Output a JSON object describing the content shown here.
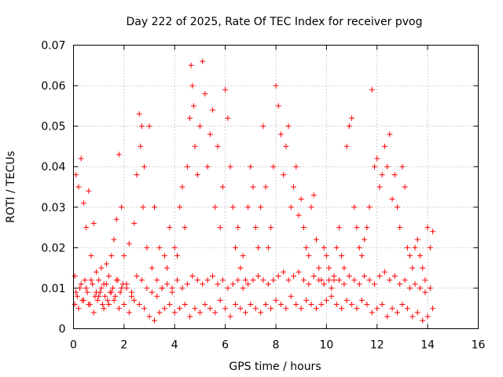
{
  "chart_data": {
    "type": "scatter",
    "title": "Day 222 of 2025, Rate Of TEC Index for receiver pvog",
    "xlabel": "GPS time / hours",
    "ylabel": "ROTI / TECUs",
    "xlim": [
      0,
      16
    ],
    "ylim": [
      0,
      0.07
    ],
    "x_ticks": [
      "0",
      "2",
      "4",
      "6",
      "8",
      "10",
      "12",
      "14",
      "16"
    ],
    "y_ticks": [
      "0",
      "0.01",
      "0.02",
      "0.03",
      "0.04",
      "0.05",
      "0.06",
      "0.07"
    ],
    "grid": true,
    "legend": "none",
    "marker": "plus",
    "color": "#ff0000",
    "series": [
      {
        "x": [
          0.05,
          0.1,
          0.15,
          0.2,
          0.25,
          0.3,
          0.35,
          0.4,
          0.45,
          0.5,
          0.55,
          0.6,
          0.65,
          0.7,
          0.75,
          0.8,
          0.85,
          0.9,
          0.95,
          1.0,
          1.05,
          1.1,
          1.15,
          1.2,
          1.25,
          1.3,
          1.35,
          1.4,
          1.45,
          1.5,
          1.55,
          1.6,
          1.65,
          1.7,
          1.75,
          1.8,
          1.85,
          1.9,
          1.95,
          2.0,
          2.1,
          2.2,
          2.3,
          2.4,
          2.5,
          2.6,
          2.65,
          2.7,
          2.75,
          2.8,
          2.9,
          3.0,
          3.1,
          3.2,
          3.3,
          3.4,
          3.5,
          3.6,
          3.7,
          3.8,
          3.9,
          4.0,
          4.1,
          4.2,
          4.3,
          4.4,
          4.5,
          4.6,
          4.65,
          4.7,
          4.75,
          4.8,
          4.9,
          5.0,
          5.1,
          5.2,
          5.3,
          5.4,
          5.5,
          5.6,
          5.7,
          5.8,
          5.9,
          6.0,
          6.1,
          6.2,
          6.3,
          6.4,
          6.5,
          6.6,
          6.7,
          6.8,
          6.9,
          7.0,
          7.1,
          7.2,
          7.3,
          7.4,
          7.5,
          7.6,
          7.7,
          7.8,
          7.9,
          8.0,
          8.1,
          8.2,
          8.3,
          8.4,
          8.5,
          8.6,
          8.7,
          8.8,
          8.9,
          9.0,
          9.1,
          9.2,
          9.3,
          9.4,
          9.5,
          9.6,
          9.7,
          9.8,
          9.9,
          10.0,
          10.1,
          10.2,
          10.3,
          10.4,
          10.5,
          10.6,
          10.7,
          10.8,
          10.9,
          11.0,
          11.1,
          11.2,
          11.3,
          11.4,
          11.5,
          11.6,
          11.7,
          11.8,
          11.9,
          12.0,
          12.1,
          12.2,
          12.3,
          12.4,
          12.5,
          12.6,
          12.7,
          12.8,
          12.9,
          13.0,
          13.1,
          13.2,
          13.3,
          13.4,
          13.5,
          13.6,
          13.7,
          13.8,
          13.9,
          14.0,
          14.1,
          14.2
        ],
        "y": [
          0.013,
          0.038,
          0.008,
          0.035,
          0.01,
          0.042,
          0.007,
          0.031,
          0.012,
          0.025,
          0.009,
          0.034,
          0.006,
          0.018,
          0.011,
          0.026,
          0.008,
          0.014,
          0.007,
          0.012,
          0.009,
          0.015,
          0.006,
          0.011,
          0.008,
          0.016,
          0.007,
          0.013,
          0.009,
          0.018,
          0.01,
          0.022,
          0.008,
          0.027,
          0.012,
          0.043,
          0.009,
          0.03,
          0.011,
          0.018,
          0.01,
          0.021,
          0.008,
          0.026,
          0.038,
          0.053,
          0.045,
          0.05,
          0.03,
          0.04,
          0.02,
          0.05,
          0.015,
          0.03,
          0.012,
          0.02,
          0.01,
          0.018,
          0.015,
          0.025,
          0.01,
          0.02,
          0.018,
          0.03,
          0.035,
          0.025,
          0.04,
          0.052,
          0.065,
          0.06,
          0.055,
          0.045,
          0.038,
          0.05,
          0.066,
          0.058,
          0.04,
          0.048,
          0.054,
          0.03,
          0.045,
          0.025,
          0.035,
          0.059,
          0.052,
          0.04,
          0.03,
          0.02,
          0.025,
          0.015,
          0.018,
          0.012,
          0.03,
          0.04,
          0.035,
          0.025,
          0.02,
          0.03,
          0.05,
          0.035,
          0.02,
          0.025,
          0.04,
          0.06,
          0.055,
          0.048,
          0.038,
          0.045,
          0.05,
          0.03,
          0.035,
          0.04,
          0.028,
          0.032,
          0.025,
          0.02,
          0.018,
          0.03,
          0.033,
          0.022,
          0.015,
          0.012,
          0.02,
          0.018,
          0.015,
          0.01,
          0.012,
          0.02,
          0.025,
          0.018,
          0.015,
          0.045,
          0.05,
          0.052,
          0.03,
          0.025,
          0.02,
          0.018,
          0.022,
          0.025,
          0.03,
          0.059,
          0.04,
          0.042,
          0.035,
          0.038,
          0.045,
          0.04,
          0.048,
          0.032,
          0.038,
          0.03,
          0.025,
          0.04,
          0.035,
          0.02,
          0.018,
          0.015,
          0.02,
          0.022,
          0.018,
          0.015,
          0.012,
          0.025,
          0.02,
          0.024
        ]
      },
      {
        "x": [
          0.05,
          0.2,
          0.4,
          0.6,
          0.8,
          1.0,
          1.2,
          1.4,
          1.6,
          1.8,
          2.0,
          2.2,
          2.4,
          2.6,
          2.8,
          3.0,
          3.2,
          3.4,
          3.6,
          3.8,
          4.0,
          4.2,
          4.4,
          4.6,
          4.8,
          5.0,
          5.2,
          5.4,
          5.6,
          5.8,
          6.0,
          6.2,
          6.4,
          6.6,
          6.8,
          7.0,
          7.2,
          7.4,
          7.6,
          7.8,
          8.0,
          8.2,
          8.4,
          8.6,
          8.8,
          9.0,
          9.2,
          9.4,
          9.6,
          9.8,
          10.0,
          10.2,
          10.4,
          10.6,
          10.8,
          11.0,
          11.2,
          11.4,
          11.6,
          11.8,
          12.0,
          12.2,
          12.4,
          12.6,
          12.8,
          13.0,
          13.2,
          13.4,
          13.6,
          13.8,
          14.0,
          14.2
        ],
        "y": [
          0.006,
          0.005,
          0.007,
          0.006,
          0.004,
          0.008,
          0.005,
          0.006,
          0.007,
          0.005,
          0.006,
          0.004,
          0.007,
          0.006,
          0.005,
          0.003,
          0.002,
          0.004,
          0.005,
          0.006,
          0.004,
          0.005,
          0.006,
          0.003,
          0.005,
          0.004,
          0.006,
          0.005,
          0.004,
          0.007,
          0.005,
          0.003,
          0.006,
          0.005,
          0.004,
          0.006,
          0.005,
          0.004,
          0.006,
          0.005,
          0.007,
          0.006,
          0.005,
          0.008,
          0.006,
          0.005,
          0.007,
          0.006,
          0.005,
          0.006,
          0.007,
          0.008,
          0.006,
          0.005,
          0.007,
          0.006,
          0.005,
          0.007,
          0.006,
          0.004,
          0.005,
          0.006,
          0.003,
          0.005,
          0.004,
          0.006,
          0.005,
          0.003,
          0.004,
          0.002,
          0.003,
          0.005
        ]
      },
      {
        "x": [
          0.1,
          0.3,
          0.5,
          0.7,
          0.9,
          1.1,
          1.3,
          1.5,
          1.7,
          1.9,
          2.1,
          2.3,
          2.5,
          2.7,
          2.9,
          3.1,
          3.3,
          3.5,
          3.7,
          3.9,
          4.1,
          4.3,
          4.5,
          4.7,
          4.9,
          5.1,
          5.3,
          5.5,
          5.7,
          5.9,
          6.1,
          6.3,
          6.5,
          6.7,
          6.9,
          7.1,
          7.3,
          7.5,
          7.7,
          7.9,
          8.1,
          8.3,
          8.5,
          8.7,
          8.9,
          9.1,
          9.3,
          9.5,
          9.7,
          9.9,
          10.1,
          10.3,
          10.5,
          10.7,
          10.9,
          11.1,
          11.3,
          11.5,
          11.7,
          11.9,
          12.1,
          12.3,
          12.5,
          12.7,
          12.9,
          13.1,
          13.3,
          13.5,
          13.7,
          13.9,
          14.1
        ],
        "y": [
          0.009,
          0.011,
          0.01,
          0.012,
          0.009,
          0.01,
          0.011,
          0.009,
          0.012,
          0.01,
          0.011,
          0.009,
          0.013,
          0.012,
          0.01,
          0.009,
          0.008,
          0.01,
          0.011,
          0.009,
          0.012,
          0.01,
          0.011,
          0.013,
          0.012,
          0.011,
          0.012,
          0.013,
          0.011,
          0.012,
          0.01,
          0.011,
          0.012,
          0.01,
          0.011,
          0.012,
          0.013,
          0.012,
          0.011,
          0.012,
          0.013,
          0.014,
          0.012,
          0.013,
          0.014,
          0.012,
          0.011,
          0.013,
          0.012,
          0.011,
          0.012,
          0.013,
          0.012,
          0.011,
          0.013,
          0.012,
          0.011,
          0.013,
          0.012,
          0.011,
          0.013,
          0.014,
          0.012,
          0.013,
          0.011,
          0.012,
          0.01,
          0.011,
          0.01,
          0.009,
          0.01
        ]
      }
    ]
  }
}
